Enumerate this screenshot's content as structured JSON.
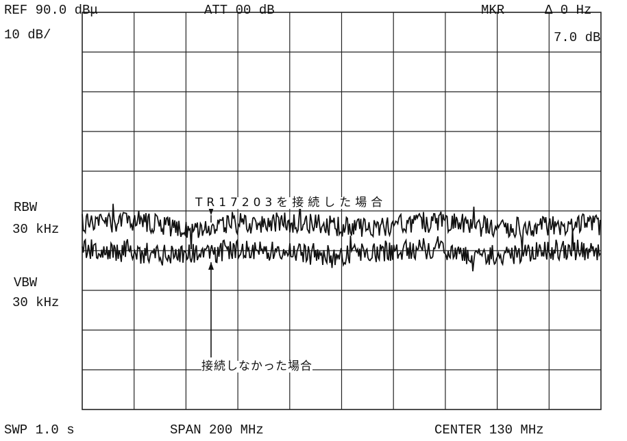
{
  "header": {
    "ref": "REF 90.0 dBμ",
    "att": "ATT 00 dB",
    "mkr": "MKR",
    "mkr_delta": "Δ 0 Hz",
    "scale": "10 dB/",
    "mkr_level": "7.0 dB"
  },
  "side": {
    "rbw_label": "RBW",
    "rbw_value": "30 kHz",
    "vbw_label": "VBW",
    "vbw_value": "30 kHz"
  },
  "footer": {
    "sweep": "SWP 1.0 s",
    "span": "SPAN 200 MHz",
    "center": "CENTER 130 MHz"
  },
  "annotations": {
    "with_device": "TR17203を接続した場合",
    "without_device": "接続しなかった場合"
  },
  "colors": {
    "ink": "#111111",
    "grid": "#222222",
    "background": "#ffffff"
  },
  "chart_data": {
    "type": "line",
    "title": "",
    "xlabel": "",
    "ylabel": "",
    "x_range_mhz": [
      30,
      230
    ],
    "ylim_dbu": [
      -10,
      90
    ],
    "grid": true,
    "divisions": {
      "x": 10,
      "y": 10
    },
    "series": [
      {
        "name": "TR17203を接続した場合",
        "level_dbu": 36.5,
        "noise_db": 1.2
      },
      {
        "name": "接続しなかった場合",
        "level_dbu": 29.5,
        "noise_db": 1.2
      }
    ]
  }
}
